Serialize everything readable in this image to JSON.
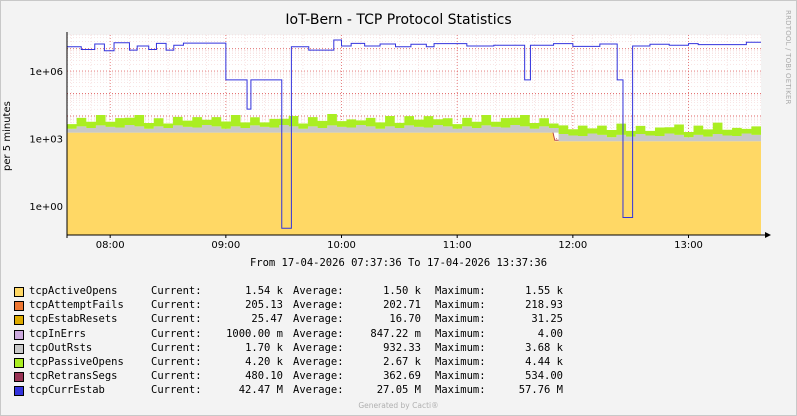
{
  "title": "IoT-Bern - TCP Protocol Statistics",
  "watermark": "RRDTOOL / TOBI OETIKER",
  "footer": "Generated by Cacti®",
  "chart_data": {
    "type": "area",
    "title": "IoT-Bern - TCP Protocol Statistics",
    "ylabel": "per 5 minutes",
    "yscale": "log",
    "ylim": [
      0.05,
      40000000
    ],
    "yticks": [
      {
        "label": "1e+06",
        "value": 1000000
      },
      {
        "label": "1e+03",
        "value": 1000
      },
      {
        "label": "1e+00",
        "value": 1
      }
    ],
    "xrange": [
      "07:37:36",
      "13:37:36"
    ],
    "xstart_min": 457.6,
    "xend_min": 817.6,
    "xticks": [
      {
        "label": "08:00",
        "min": 480
      },
      {
        "label": "09:00",
        "min": 540
      },
      {
        "label": "10:00",
        "min": 600
      },
      {
        "label": "11:00",
        "min": 660
      },
      {
        "label": "12:00",
        "min": 720
      },
      {
        "label": "13:00",
        "min": 780
      }
    ],
    "grid": true,
    "range_text": "From 17-04-2026 07:37:36 To 17-04-2026 13:37:36",
    "stack_base": {
      "before_min": 1800,
      "after_min": 750,
      "step_min": 710
    },
    "stack_layers": [
      {
        "name": "tcpOutRsts",
        "color": "#c8c8c8",
        "pattern": [
          0.5,
          0.9,
          0.6,
          1.1,
          0.8,
          0.7,
          1.2,
          0.9
        ],
        "factor": 1
      },
      {
        "name": "tcpPassiveOpens",
        "color": "#aaee22",
        "pattern": [
          0.6,
          1.4,
          0.9,
          1.9,
          0.7,
          1.6,
          1.1,
          2.2,
          0.8,
          1.3
        ],
        "factor": 1
      }
    ],
    "curr_estab": {
      "color": "#3333dd",
      "points": [
        [
          457.6,
          12000000
        ],
        [
          465,
          12000000
        ],
        [
          465,
          9000000
        ],
        [
          472,
          9000000
        ],
        [
          472,
          16000000
        ],
        [
          477,
          16000000
        ],
        [
          477,
          8000000
        ],
        [
          482,
          8000000
        ],
        [
          482,
          18000000
        ],
        [
          490,
          18000000
        ],
        [
          490,
          8500000
        ],
        [
          494,
          8500000
        ],
        [
          494,
          13000000
        ],
        [
          500,
          13000000
        ],
        [
          500,
          9000000
        ],
        [
          504,
          9000000
        ],
        [
          504,
          17000000
        ],
        [
          509,
          17000000
        ],
        [
          509,
          8500000
        ],
        [
          513,
          8500000
        ],
        [
          513,
          14000000
        ],
        [
          518,
          14000000
        ],
        [
          518,
          17500000
        ],
        [
          540,
          17500000
        ],
        [
          540,
          400000
        ],
        [
          551,
          400000
        ],
        [
          551,
          20000
        ],
        [
          553,
          20000
        ],
        [
          553,
          400000
        ],
        [
          569,
          400000
        ],
        [
          569,
          0.1
        ],
        [
          574,
          0.1
        ],
        [
          574,
          12000000
        ],
        [
          583,
          12000000
        ],
        [
          583,
          8500000
        ],
        [
          596,
          8500000
        ],
        [
          596,
          24000000
        ],
        [
          600,
          24000000
        ],
        [
          600,
          13000000
        ],
        [
          605,
          13000000
        ],
        [
          605,
          17000000
        ],
        [
          612,
          17000000
        ],
        [
          612,
          13000000
        ],
        [
          620,
          13000000
        ],
        [
          620,
          16000000
        ],
        [
          628,
          16000000
        ],
        [
          628,
          12000000
        ],
        [
          636,
          12000000
        ],
        [
          636,
          15500000
        ],
        [
          644,
          15500000
        ],
        [
          644,
          12000000
        ],
        [
          648,
          12000000
        ],
        [
          648,
          16500000
        ],
        [
          665,
          16500000
        ],
        [
          665,
          13000000
        ],
        [
          679,
          13000000
        ],
        [
          679,
          14000000
        ],
        [
          695,
          14000000
        ],
        [
          695,
          400000
        ],
        [
          698,
          400000
        ],
        [
          698,
          14000000
        ],
        [
          710,
          14000000
        ],
        [
          710,
          16500000
        ],
        [
          720,
          16500000
        ],
        [
          720,
          12500000
        ],
        [
          734,
          12500000
        ],
        [
          734,
          16000000
        ],
        [
          743,
          16000000
        ],
        [
          743,
          400000
        ],
        [
          746,
          400000
        ],
        [
          746,
          0.3
        ],
        [
          751,
          0.3
        ],
        [
          751,
          13000000
        ],
        [
          760,
          13000000
        ],
        [
          760,
          15500000
        ],
        [
          770,
          15500000
        ],
        [
          770,
          14000000
        ],
        [
          780,
          14000000
        ],
        [
          780,
          16500000
        ],
        [
          785,
          16500000
        ],
        [
          785,
          15000000
        ],
        [
          810,
          15000000
        ],
        [
          810,
          19000000
        ],
        [
          817.6,
          19000000
        ]
      ]
    },
    "legend": [
      {
        "name": "tcpActiveOpens",
        "color": "#ffd865",
        "current": "1.54 k",
        "average": "1.50 k",
        "maximum": "1.55 k"
      },
      {
        "name": "tcpAttemptFails",
        "color": "#ee7733",
        "current": "205.13",
        "average": "202.71",
        "maximum": "218.93"
      },
      {
        "name": "tcpEstabResets",
        "color": "#ddaa00",
        "current": "25.47",
        "average": "16.70",
        "maximum": "31.25"
      },
      {
        "name": "tcpInErrs",
        "color": "#ccaadd",
        "current": "1000.00 m",
        "average": "847.22 m",
        "maximum": "4.00"
      },
      {
        "name": "tcpOutRsts",
        "color": "#c8c8c8",
        "current": "1.70 k",
        "average": "932.33",
        "maximum": "3.68 k"
      },
      {
        "name": "tcpPassiveOpens",
        "color": "#aaee22",
        "current": "4.20 k",
        "average": "2.67 k",
        "maximum": "4.44 k"
      },
      {
        "name": "tcpRetransSegs",
        "color": "#993355",
        "current": "480.10",
        "average": "362.69",
        "maximum": "534.00"
      },
      {
        "name": "tcpCurrEstab",
        "color": "#3333dd",
        "current": "42.47 M",
        "average": "27.05 M",
        "maximum": "57.76 M"
      }
    ],
    "legend_labels": {
      "current": "Current:",
      "average": "Average:",
      "maximum": "Maximum:"
    }
  }
}
